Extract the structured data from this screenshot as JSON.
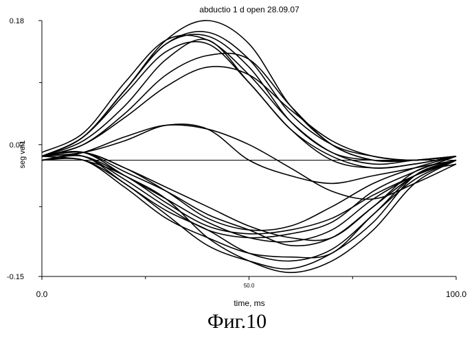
{
  "caption": "Фиг.10",
  "chart_data": {
    "type": "line",
    "title": "abductio 1 d open 28.09.07",
    "xlabel": "time, ms",
    "ylabel": "seg vel1",
    "xlim": [
      0,
      100
    ],
    "ylim": [
      -0.15,
      0.18
    ],
    "x_ticks": [
      {
        "value": 0,
        "label": "0.0"
      },
      {
        "value": 50,
        "label": "50.0"
      },
      {
        "value": 100,
        "label": "100.0"
      }
    ],
    "x_minor_ticks": [
      25,
      75
    ],
    "y_ticks": [
      {
        "value": 0.18,
        "label": "0.18"
      },
      {
        "value": 0.02,
        "label": "0.02"
      },
      {
        "value": -0.15,
        "label": "-0.15"
      }
    ],
    "y_minor_ticks": [
      0.1,
      -0.06
    ],
    "grid": false,
    "reference_line": 0.0,
    "line_color": "#000000",
    "x": [
      0,
      10,
      20,
      30,
      40,
      50,
      60,
      70,
      80,
      90,
      100
    ],
    "series": [
      {
        "values": [
          0.005,
          0.03,
          0.09,
          0.155,
          0.18,
          0.15,
          0.07,
          0.02,
          0.0,
          0.0,
          0.005
        ]
      },
      {
        "values": [
          0.005,
          0.03,
          0.09,
          0.15,
          0.165,
          0.13,
          0.06,
          0.02,
          0.005,
          0.0,
          0.005
        ]
      },
      {
        "values": [
          0.005,
          0.03,
          0.09,
          0.15,
          0.16,
          0.12,
          0.05,
          0.01,
          0.0,
          0.0,
          0.005
        ]
      },
      {
        "values": [
          0.01,
          0.035,
          0.1,
          0.155,
          0.155,
          0.11,
          0.05,
          0.01,
          -0.005,
          0.0,
          0.005
        ]
      },
      {
        "values": [
          0.005,
          0.03,
          0.085,
          0.14,
          0.15,
          0.1,
          0.04,
          0.005,
          -0.01,
          -0.005,
          0.005
        ]
      },
      {
        "values": [
          0.005,
          0.025,
          0.07,
          0.13,
          0.155,
          0.1,
          0.04,
          0.0,
          -0.01,
          -0.005,
          0.005
        ]
      },
      {
        "values": [
          0.005,
          0.02,
          0.06,
          0.11,
          0.135,
          0.13,
          0.07,
          0.02,
          0.0,
          0.0,
          0.005
        ]
      },
      {
        "values": [
          0.005,
          0.02,
          0.055,
          0.095,
          0.12,
          0.11,
          0.065,
          0.025,
          0.005,
          0.0,
          0.005
        ]
      },
      {
        "values": [
          0.0,
          0.01,
          0.03,
          0.045,
          0.04,
          0.02,
          -0.01,
          -0.04,
          -0.05,
          -0.03,
          -0.005
        ]
      },
      {
        "values": [
          0.005,
          0.01,
          0.025,
          0.045,
          0.04,
          0.0,
          -0.02,
          -0.03,
          -0.02,
          -0.01,
          0.0
        ]
      },
      {
        "values": [
          0.005,
          0.01,
          -0.02,
          -0.05,
          -0.08,
          -0.1,
          -0.105,
          -0.09,
          -0.05,
          -0.02,
          0.0
        ]
      },
      {
        "values": [
          0.005,
          0.005,
          -0.025,
          -0.06,
          -0.09,
          -0.1,
          -0.095,
          -0.08,
          -0.04,
          -0.015,
          0.005
        ]
      },
      {
        "values": [
          0.005,
          0.0,
          -0.02,
          -0.055,
          -0.085,
          -0.095,
          -0.09,
          -0.075,
          -0.045,
          -0.02,
          0.0
        ]
      },
      {
        "values": [
          0.005,
          0.01,
          -0.01,
          -0.04,
          -0.075,
          -0.09,
          -0.085,
          -0.06,
          -0.03,
          -0.01,
          0.005
        ]
      },
      {
        "values": [
          0.0,
          0.005,
          -0.02,
          -0.05,
          -0.1,
          -0.13,
          -0.145,
          -0.13,
          -0.09,
          -0.03,
          0.0
        ]
      },
      {
        "values": [
          0.0,
          0.0,
          -0.03,
          -0.07,
          -0.11,
          -0.13,
          -0.14,
          -0.12,
          -0.08,
          -0.02,
          0.0
        ]
      },
      {
        "values": [
          0.0,
          0.0,
          -0.035,
          -0.075,
          -0.1,
          -0.12,
          -0.125,
          -0.12,
          -0.07,
          -0.025,
          0.0
        ]
      },
      {
        "values": [
          0.0,
          0.005,
          -0.03,
          -0.065,
          -0.09,
          -0.12,
          -0.13,
          -0.115,
          -0.07,
          -0.02,
          -0.005
        ]
      },
      {
        "values": [
          0.005,
          0.01,
          -0.01,
          -0.035,
          -0.06,
          -0.085,
          -0.1,
          -0.1,
          -0.06,
          -0.015,
          0.0
        ]
      },
      {
        "values": [
          0.005,
          0.01,
          -0.015,
          -0.04,
          -0.07,
          -0.09,
          -0.11,
          -0.1,
          -0.06,
          -0.02,
          0.0
        ]
      }
    ]
  }
}
